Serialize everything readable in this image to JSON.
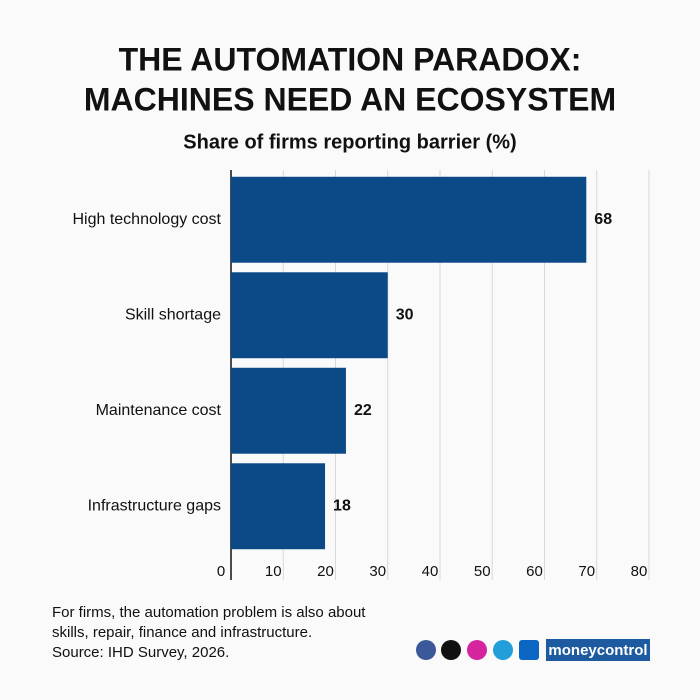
{
  "chart_data": {
    "type": "bar",
    "orientation": "horizontal",
    "title": [
      "THE AUTOMATION PARADOX:",
      "MACHINES NEED AN ECOSYSTEM"
    ],
    "subtitle": "Share of firms reporting barrier (%)",
    "categories": [
      "High technology cost",
      "Skill shortage",
      "Maintenance cost",
      "Infrastructure gaps"
    ],
    "values": [
      68,
      30,
      22,
      18
    ],
    "color": "#0b4a86",
    "xlim": [
      0,
      80
    ],
    "xticks": [
      0,
      10,
      20,
      30,
      40,
      50,
      60,
      70,
      80
    ],
    "grid": true
  },
  "footer": {
    "notes": [
      "For firms, the automation problem is also about",
      "skills, repair, finance and infrastructure.",
      "Source: IHD Survey, 2026."
    ],
    "brand": "moneycontrol"
  }
}
